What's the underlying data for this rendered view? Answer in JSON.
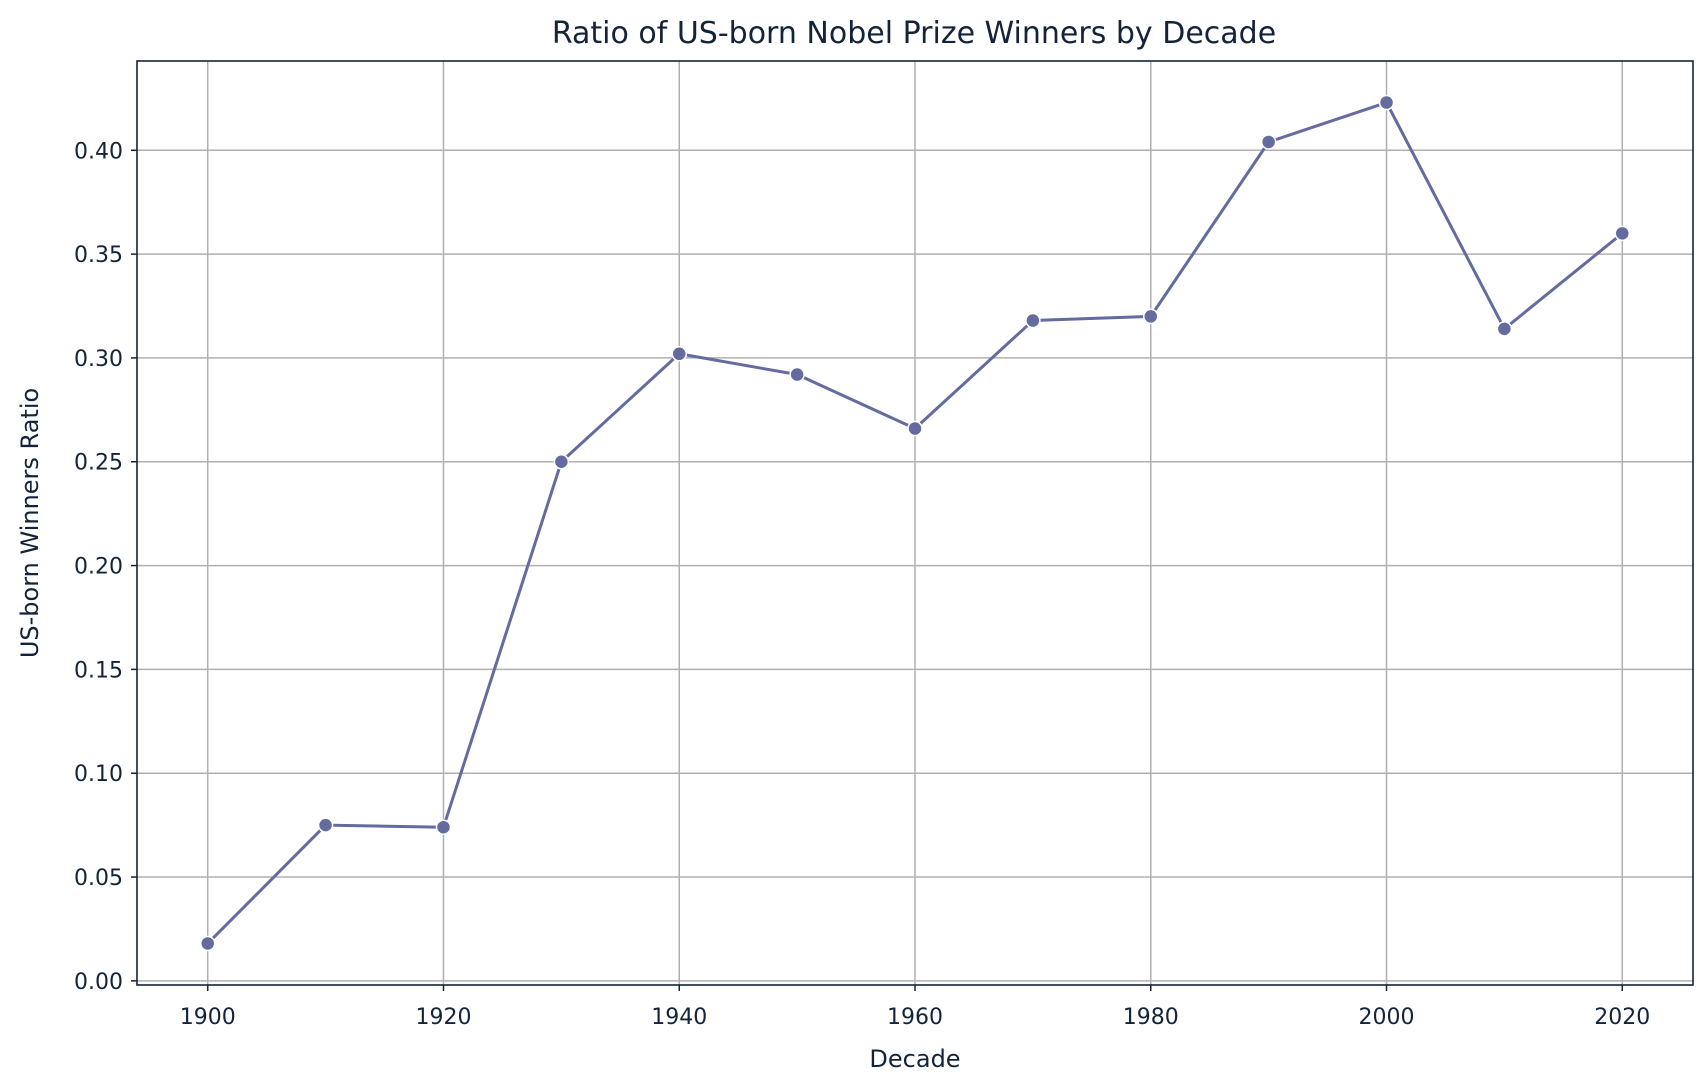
{
  "chart_data": {
    "type": "line",
    "title": "Ratio of US-born Nobel Prize Winners by Decade",
    "xlabel": "Decade",
    "ylabel": "US-born Winners Ratio",
    "x": [
      1900,
      1910,
      1920,
      1930,
      1940,
      1950,
      1960,
      1970,
      1980,
      1990,
      2000,
      2010,
      2020
    ],
    "series": [
      {
        "values": [
          0.018,
          0.075,
          0.074,
          0.25,
          0.302,
          0.292,
          0.266,
          0.318,
          0.32,
          0.404,
          0.423,
          0.314,
          0.36
        ]
      }
    ],
    "xlim": [
      1894,
      2026
    ],
    "ylim": [
      -0.002,
      0.443
    ],
    "xticks": [
      1900,
      1920,
      1940,
      1960,
      1980,
      2000,
      2020
    ],
    "yticks": [
      0.0,
      0.05,
      0.1,
      0.15,
      0.2,
      0.25,
      0.3,
      0.35,
      0.4
    ],
    "xtick_labels": [
      "1900",
      "1920",
      "1940",
      "1960",
      "1980",
      "2000",
      "2020"
    ],
    "ytick_labels": [
      "0.00",
      "0.05",
      "0.10",
      "0.15",
      "0.20",
      "0.25",
      "0.30",
      "0.35",
      "0.40"
    ],
    "grid": true,
    "line_color": "#636b9f",
    "marker_color": "#636b9f"
  }
}
